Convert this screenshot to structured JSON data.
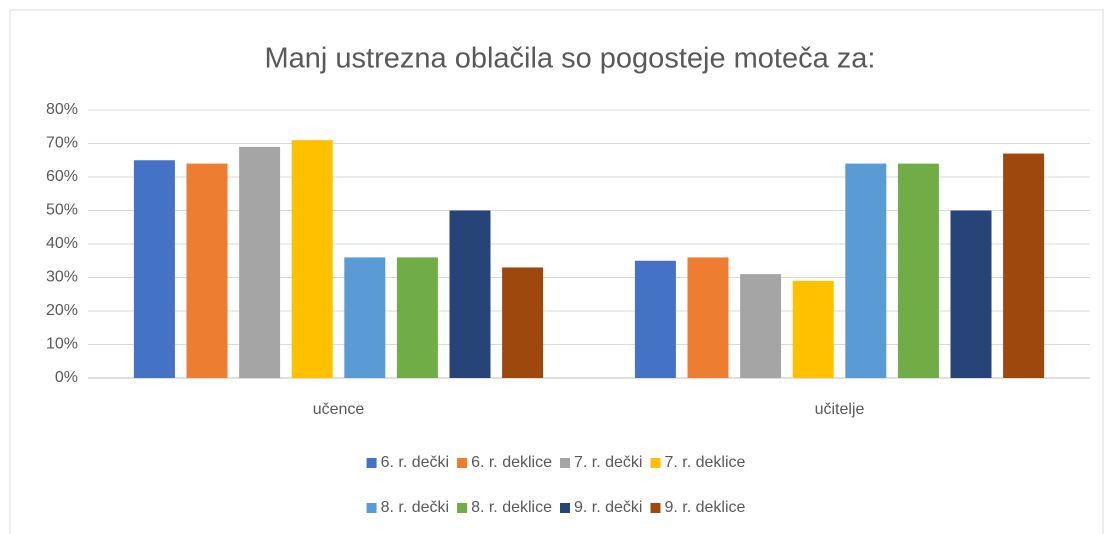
{
  "chart_data": {
    "type": "bar",
    "title": "Manj ustrezna oblačila so pogosteje moteča za:",
    "categories": [
      "učence",
      "učitelje"
    ],
    "series": [
      {
        "name": "6. r. dečki",
        "color": "#4472c4",
        "values": [
          65,
          35
        ]
      },
      {
        "name": "6. r. deklice",
        "color": "#ed7d31",
        "values": [
          64,
          36
        ]
      },
      {
        "name": "7. r. dečki",
        "color": "#a5a5a5",
        "values": [
          69,
          31
        ]
      },
      {
        "name": "7. r. deklice",
        "color": "#ffc000",
        "values": [
          71,
          29
        ]
      },
      {
        "name": "8. r. dečki",
        "color": "#5b9bd5",
        "values": [
          36,
          64
        ]
      },
      {
        "name": "8. r. deklice",
        "color": "#70ad47",
        "values": [
          36,
          64
        ]
      },
      {
        "name": "9. r. dečki",
        "color": "#264478",
        "values": [
          50,
          50
        ]
      },
      {
        "name": "9. r. deklice",
        "color": "#9e480e",
        "values": [
          33,
          67
        ]
      }
    ],
    "ylim": [
      0,
      80
    ],
    "yticks": [
      {
        "value": 0,
        "label": "0%"
      },
      {
        "value": 10,
        "label": "10%"
      },
      {
        "value": 20,
        "label": "20%"
      },
      {
        "value": 30,
        "label": "30%"
      },
      {
        "value": 40,
        "label": "40%"
      },
      {
        "value": 50,
        "label": "50%"
      },
      {
        "value": 60,
        "label": "60%"
      },
      {
        "value": 70,
        "label": "70%"
      },
      {
        "value": 80,
        "label": "80%"
      }
    ],
    "grid": true,
    "legend": "bottom"
  }
}
